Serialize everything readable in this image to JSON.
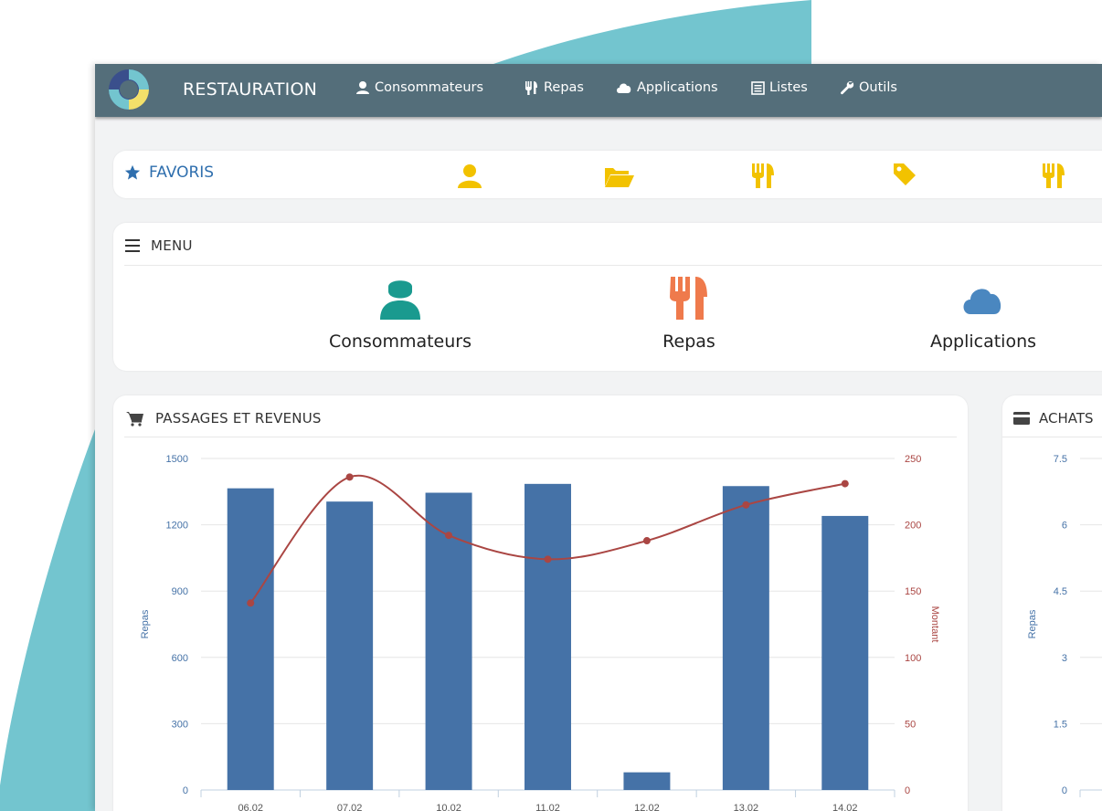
{
  "navbar": {
    "brand": "RESTAURATION",
    "items": [
      {
        "label": "Consommateurs",
        "icon": "user-icon"
      },
      {
        "label": "Repas",
        "icon": "utensils-icon"
      },
      {
        "label": "Applications",
        "icon": "cloud-icon"
      },
      {
        "label": "Listes",
        "icon": "list-icon"
      },
      {
        "label": "Outils",
        "icon": "wrench-icon"
      }
    ]
  },
  "favorites": {
    "title": "FAVORIS",
    "icons": [
      "user-icon",
      "folder-open-icon",
      "utensils-icon",
      "tag-icon",
      "utensils-icon"
    ],
    "color": "#f2c200"
  },
  "menu": {
    "title": "MENU",
    "items": [
      {
        "label": "Consommateurs",
        "icon": "user-icon",
        "color": "#1a9a8f"
      },
      {
        "label": "Repas",
        "icon": "utensils-icon",
        "color": "#ef7a4c"
      },
      {
        "label": "Applications",
        "icon": "cloud-icon",
        "color": "#4a87c0"
      }
    ]
  },
  "passages": {
    "title": "PASSAGES ET REVENUS"
  },
  "achats": {
    "title": "ACHATS"
  },
  "colors": {
    "accent": "#2f6fae",
    "bar": "#4572a7",
    "line": "#aa4643",
    "teal": "#73c5cf",
    "nav": "#546e7a"
  },
  "chart_data": [
    {
      "type": "bar",
      "title": "",
      "categories": [
        "06.02",
        "07.02",
        "10.02",
        "11.02",
        "12.02",
        "13.02",
        "14.02"
      ],
      "series": [
        {
          "name": "Repas",
          "type": "bar",
          "axis": "left",
          "values": [
            1365,
            1305,
            1345,
            1385,
            80,
            1375,
            1240
          ]
        },
        {
          "name": "Montant",
          "type": "line",
          "axis": "right",
          "values": [
            141,
            236,
            192,
            174,
            188,
            215,
            231
          ]
        }
      ],
      "ylabel": "Repas",
      "y2label": "Montant",
      "ylim": [
        0,
        1500
      ],
      "yticks": [
        0,
        300,
        600,
        900,
        1200,
        1500
      ],
      "y2lim": [
        0,
        250
      ],
      "y2ticks": [
        0,
        50,
        100,
        150,
        200,
        250
      ],
      "grid": true
    },
    {
      "type": "bar",
      "title": "",
      "ylabel": "Repas",
      "ylim": [
        0,
        7.5
      ],
      "yticks": [
        "0",
        "1.5",
        "3",
        "4.5",
        "6",
        "7.5"
      ],
      "grid": true
    }
  ]
}
